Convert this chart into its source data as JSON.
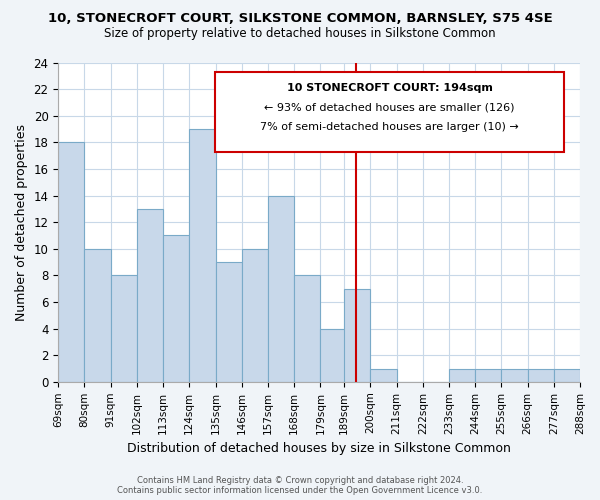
{
  "title": "10, STONECROFT COURT, SILKSTONE COMMON, BARNSLEY, S75 4SE",
  "subtitle": "Size of property relative to detached houses in Silkstone Common",
  "xlabel": "Distribution of detached houses by size in Silkstone Common",
  "ylabel": "Number of detached properties",
  "bins": [
    69,
    80,
    91,
    102,
    113,
    124,
    135,
    146,
    157,
    168,
    179,
    189,
    200,
    211,
    222,
    233,
    244,
    255,
    266,
    277,
    288
  ],
  "bin_labels": [
    "69sqm",
    "80sqm",
    "91sqm",
    "102sqm",
    "113sqm",
    "124sqm",
    "135sqm",
    "146sqm",
    "157sqm",
    "168sqm",
    "179sqm",
    "189sqm",
    "200sqm",
    "211sqm",
    "222sqm",
    "233sqm",
    "244sqm",
    "255sqm",
    "266sqm",
    "277sqm",
    "288sqm"
  ],
  "counts": [
    18,
    10,
    8,
    13,
    11,
    19,
    9,
    10,
    14,
    8,
    4,
    7,
    1,
    0,
    0,
    1,
    1,
    1,
    1,
    1
  ],
  "bar_color": "#c8d8ea",
  "bar_edge_color": "#7aaac8",
  "property_line_x": 194,
  "property_line_color": "#cc0000",
  "annotation_title": "10 STONECROFT COURT: 194sqm",
  "annotation_line1": "← 93% of detached houses are smaller (126)",
  "annotation_line2": "7% of semi-detached houses are larger (10) →",
  "annotation_box_color": "#cc0000",
  "ylim": [
    0,
    24
  ],
  "yticks": [
    0,
    2,
    4,
    6,
    8,
    10,
    12,
    14,
    16,
    18,
    20,
    22,
    24
  ],
  "footer_line1": "Contains HM Land Registry data © Crown copyright and database right 2024.",
  "footer_line2": "Contains public sector information licensed under the Open Government Licence v3.0.",
  "background_color": "#f0f4f8",
  "plot_background": "#ffffff"
}
